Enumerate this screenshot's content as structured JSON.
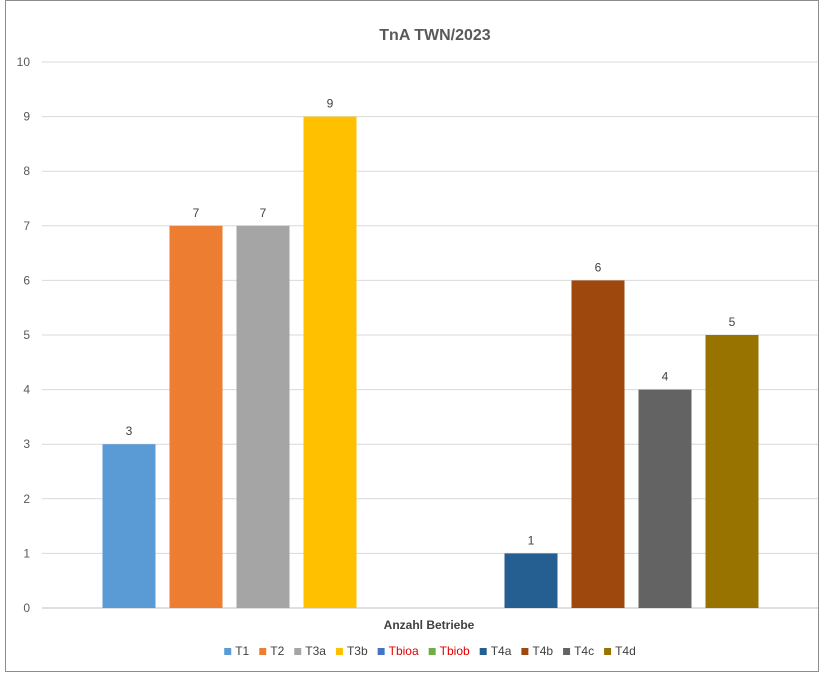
{
  "chart_data": {
    "type": "bar",
    "title": "TnA TWN/2023",
    "xlabel": "Anzahl Betriebe",
    "ylabel": "",
    "categories": [
      "Anzahl Betriebe"
    ],
    "ylim": [
      0,
      10
    ],
    "yticks": [
      "0",
      "1",
      "2",
      "3",
      "4",
      "5",
      "6",
      "7",
      "8",
      "9",
      "10"
    ],
    "grid": true,
    "legend_position": "bottom",
    "series": [
      {
        "name": "T1",
        "value": 3,
        "label": "3",
        "color": "#5b9bd5",
        "legend_text_color": "#404040"
      },
      {
        "name": "T2",
        "value": 7,
        "label": "7",
        "color": "#ed7d31",
        "legend_text_color": "#404040"
      },
      {
        "name": "T3a",
        "value": 7,
        "label": "7",
        "color": "#a5a5a5",
        "legend_text_color": "#404040"
      },
      {
        "name": "T3b",
        "value": 9,
        "label": "9",
        "color": "#ffc000",
        "legend_text_color": "#404040"
      },
      {
        "name": "Tbioa",
        "value": 0,
        "label": "",
        "color": "#4472c4",
        "legend_text_color": "#e00000"
      },
      {
        "name": "Tbiob",
        "value": 0,
        "label": "",
        "color": "#70ad47",
        "legend_text_color": "#e00000"
      },
      {
        "name": "T4a",
        "value": 1,
        "label": "1",
        "color": "#255e91",
        "legend_text_color": "#404040"
      },
      {
        "name": "T4b",
        "value": 6,
        "label": "6",
        "color": "#9e480e",
        "legend_text_color": "#404040"
      },
      {
        "name": "T4c",
        "value": 4,
        "label": "4",
        "color": "#636363",
        "legend_text_color": "#404040"
      },
      {
        "name": "T4d",
        "value": 5,
        "label": "5",
        "color": "#997300",
        "legend_text_color": "#404040"
      }
    ]
  }
}
